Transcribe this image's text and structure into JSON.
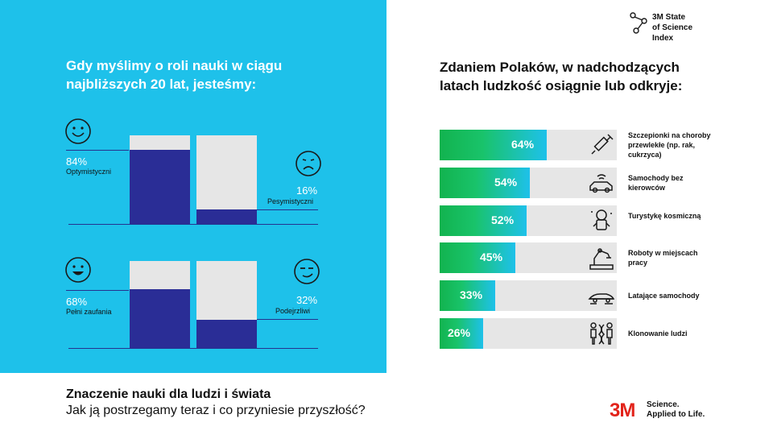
{
  "left": {
    "title": "Gdy myślimy o roli nauki w ciągu najbliższych 20 lat, jesteśmy:",
    "pair1": {
      "a": {
        "pct": "84%",
        "label": "Optymistyczni",
        "value": 84
      },
      "b": {
        "pct": "16%",
        "label": "Pesymistyczni",
        "value": 16
      }
    },
    "pair2": {
      "a": {
        "pct": "68%",
        "label": "Pełni zaufania",
        "value": 68
      },
      "b": {
        "pct": "32%",
        "label": "Podejrzliwi",
        "value": 32
      }
    }
  },
  "right": {
    "title": "Zdaniem Polaków, w nadchodzących latach ludzkość osiągnie lub odkryje:"
  },
  "logo": {
    "line1": "3M State",
    "line2": "of Science",
    "line3": "Index"
  },
  "footer": {
    "title": "Znaczenie nauki dla ludzi i świata",
    "subtitle": "Jak ją postrzegamy teraz i co przyniesie przyszłość?"
  },
  "brand": {
    "mark": "3M",
    "tag1": "Science.",
    "tag2": "Applied to Life."
  },
  "colors": {
    "cyan": "#1ec1ea",
    "navy": "#2a2d96",
    "green": "#12b34f",
    "gray": "#e6e6e6",
    "red": "#e2231a"
  },
  "chart_data": [
    {
      "type": "bar",
      "title": "Gdy myślimy o roli nauki w ciągu najbliższych 20 lat, jesteśmy:",
      "categories": [
        "Optymistyczni",
        "Pesymistyczni"
      ],
      "values": [
        84,
        16
      ],
      "ylim": [
        0,
        100
      ]
    },
    {
      "type": "bar",
      "categories": [
        "Pełni zaufania",
        "Podejrzliwi"
      ],
      "values": [
        68,
        32
      ],
      "ylim": [
        0,
        100
      ]
    },
    {
      "type": "bar",
      "orientation": "horizontal",
      "title": "Zdaniem Polaków, w nadchodzących latach ludzkość osiągnie lub odkryje:",
      "xlim": [
        0,
        100
      ],
      "items": [
        {
          "pct": "64%",
          "value": 64,
          "label": "Szczepionki na choroby przewlekłe (np. rak, cukrzyca)",
          "icon": "syringe-icon"
        },
        {
          "pct": "54%",
          "value": 54,
          "label": "Samochody bez kierowców",
          "icon": "autonomous-car-icon"
        },
        {
          "pct": "52%",
          "value": 52,
          "label": "Turystykę kosmiczną",
          "icon": "astronaut-icon"
        },
        {
          "pct": "45%",
          "value": 45,
          "label": "Roboty w miejscach pracy",
          "icon": "robot-arm-icon"
        },
        {
          "pct": "33%",
          "value": 33,
          "label": "Latające samochody",
          "icon": "flying-car-icon"
        },
        {
          "pct": "26%",
          "value": 26,
          "label": "Klonowanie ludzi",
          "icon": "clone-icon"
        }
      ]
    }
  ]
}
